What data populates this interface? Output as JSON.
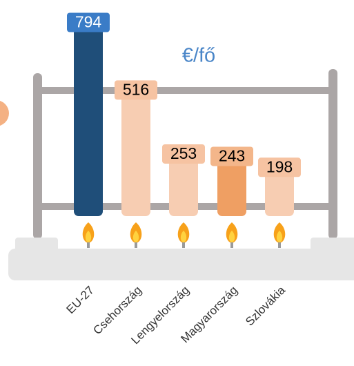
{
  "chart_data": {
    "type": "bar",
    "unit_label": "€/fő",
    "categories": [
      "EU-27",
      "Csehország",
      "Lengyelország",
      "Magyarország",
      "Szlovákia"
    ],
    "values": [
      794,
      516,
      253,
      243,
      198
    ],
    "colors": [
      "#1f4e79",
      "#f7cdb2",
      "#f7cdb2",
      "#ef9f63",
      "#f7cdb2"
    ]
  }
}
